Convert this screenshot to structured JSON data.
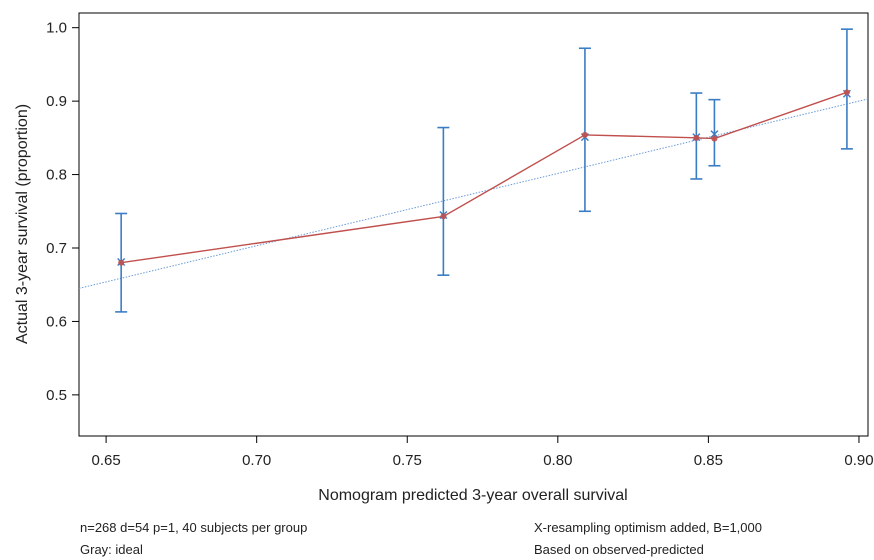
{
  "chart_data": {
    "type": "line",
    "title": "",
    "xlabel": "Nomogram predicted 3-year overall survival",
    "ylabel": "Actual 3-year survival (proportion)",
    "xlim": [
      0.641,
      0.903
    ],
    "ylim": [
      0.444,
      1.02
    ],
    "xticks": [
      0.65,
      0.7,
      0.75,
      0.8,
      0.85,
      0.9
    ],
    "xtick_labels": [
      "0.65",
      "0.70",
      "0.75",
      "0.80",
      "0.85",
      "0.90"
    ],
    "yticks": [
      0.5,
      0.6,
      0.7,
      0.8,
      0.9,
      1.0
    ],
    "ytick_labels": [
      "0.5",
      "0.6",
      "0.7",
      "0.8",
      "0.9",
      "1.0"
    ],
    "grid": false,
    "series": [
      {
        "color": "#c0504d",
        "style": "solid",
        "markers": "circle",
        "points": [
          {
            "x": 0.655,
            "y": 0.68
          },
          {
            "x": 0.762,
            "y": 0.743
          },
          {
            "x": 0.809,
            "y": 0.854
          },
          {
            "x": 0.846,
            "y": 0.85
          },
          {
            "x": 0.852,
            "y": 0.849
          },
          {
            "x": 0.896,
            "y": 0.912
          }
        ]
      },
      {
        "color": "#3b7dc4",
        "style": "x-markers",
        "markers": "x",
        "points": [
          {
            "x": 0.655,
            "y": 0.681
          },
          {
            "x": 0.762,
            "y": 0.745
          },
          {
            "x": 0.809,
            "y": 0.851
          },
          {
            "x": 0.846,
            "y": 0.851
          },
          {
            "x": 0.852,
            "y": 0.855
          },
          {
            "x": 0.896,
            "y": 0.91
          }
        ]
      },
      {
        "color": "#6a9bd8",
        "style": "dotted",
        "points": [
          {
            "x": 0.641,
            "y": 0.645
          },
          {
            "x": 0.903,
            "y": 0.903
          }
        ]
      }
    ],
    "error_bars": {
      "color": "#3b7dc4",
      "bars": [
        {
          "x": 0.655,
          "low": 0.613,
          "high": 0.747
        },
        {
          "x": 0.762,
          "low": 0.663,
          "high": 0.864
        },
        {
          "x": 0.809,
          "low": 0.75,
          "high": 0.972
        },
        {
          "x": 0.846,
          "low": 0.794,
          "high": 0.911
        },
        {
          "x": 0.852,
          "low": 0.812,
          "high": 0.902
        },
        {
          "x": 0.896,
          "low": 0.835,
          "high": 0.998
        }
      ]
    },
    "annotations": [
      "n=268 d=54 p=1, 40 subjects per group",
      "Gray: ideal",
      "X-resampling optimism added, B=1,000",
      "Based on observed-predicted"
    ]
  }
}
